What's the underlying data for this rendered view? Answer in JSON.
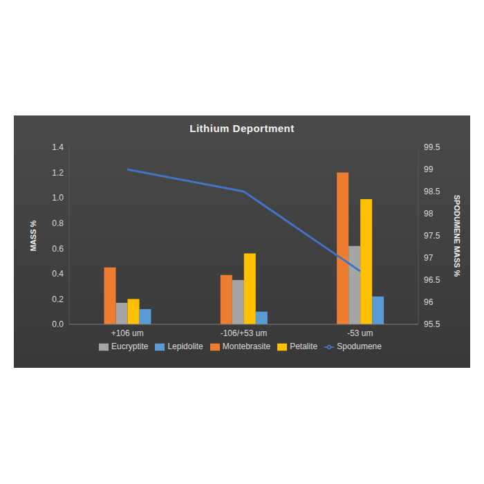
{
  "chart_data": {
    "type": "bar",
    "title": "Lithium Deportment",
    "categories": [
      "+106 um",
      "-106/+53 um",
      "-53 um"
    ],
    "ylabel": "MASS %",
    "y2label": "SPODUMENE MASS %",
    "series": [
      {
        "name": "Montebrasite",
        "color": "#ed7d31",
        "values": [
          0.45,
          0.39,
          1.2
        ]
      },
      {
        "name": "Eucryptite",
        "color": "#a5a5a5",
        "values": [
          0.17,
          0.35,
          0.62
        ]
      },
      {
        "name": "Petalite",
        "color": "#ffc000",
        "values": [
          0.2,
          0.56,
          0.99
        ]
      },
      {
        "name": "Lepidolite",
        "color": "#5b9bd5",
        "values": [
          0.12,
          0.1,
          0.22
        ]
      },
      {
        "name": "Spodumene",
        "color": "#4472c4",
        "type": "line",
        "axis": "y2",
        "values": [
          99.0,
          98.5,
          96.7
        ]
      }
    ],
    "ylim": [
      0,
      1.4
    ],
    "yticks": [
      {
        "value": 0,
        "label": "0.0"
      },
      0.2,
      0.4,
      0.6,
      0.8,
      {
        "value": 1,
        "label": "1.0"
      },
      1.2,
      1.4
    ],
    "y2lim": [
      95.5,
      99.5
    ],
    "y2ticks": [
      95.5,
      96,
      96.5,
      97,
      97.5,
      98,
      98.5,
      99,
      99.5
    ],
    "grid": false,
    "legend": "bottom"
  }
}
